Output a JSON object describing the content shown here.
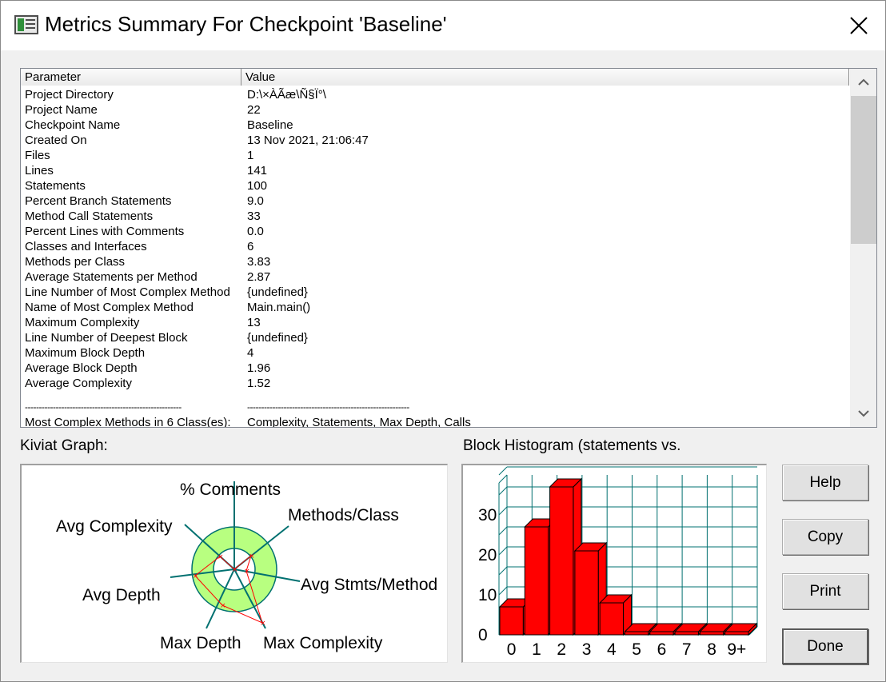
{
  "window": {
    "title": "Metrics Summary For Checkpoint 'Baseline'"
  },
  "table": {
    "columns": [
      "Parameter",
      "Value"
    ],
    "rows": [
      [
        "Project Directory",
        "D:\\×ÀÃæ\\Ñ§Ï°\\"
      ],
      [
        "Project Name",
        "22"
      ],
      [
        "Checkpoint Name",
        "Baseline"
      ],
      [
        "Created On",
        "13 Nov 2021, 21:06:47"
      ],
      [
        "Files",
        "1"
      ],
      [
        "Lines",
        "141"
      ],
      [
        "Statements",
        "100"
      ],
      [
        "Percent Branch Statements",
        "9.0"
      ],
      [
        "Method Call Statements",
        "33"
      ],
      [
        "Percent Lines with Comments",
        "0.0"
      ],
      [
        "Classes and Interfaces",
        "6"
      ],
      [
        "Methods per Class",
        "3.83"
      ],
      [
        "Average Statements per Method",
        "2.87"
      ],
      [
        "Line Number of Most Complex Method",
        "{undefined}"
      ],
      [
        "Name of Most Complex Method",
        "Main.main()"
      ],
      [
        "Maximum Complexity",
        "13"
      ],
      [
        "Line Number of Deepest Block",
        "{undefined}"
      ],
      [
        "Maximum Block Depth",
        "4"
      ],
      [
        "Average Block Depth",
        "1.96"
      ],
      [
        "Average Complexity",
        "1.52"
      ]
    ],
    "separator_row": [
      "--------------------------------------------------------",
      "----------------------------------------------------------"
    ],
    "partial_row": [
      "Most Complex Methods in 6 Class(es):",
      "Complexity, Statements, Max Depth, Calls"
    ]
  },
  "kiviat": {
    "label": "Kiviat Graph:",
    "axes": [
      "% Comments",
      "Methods/Class",
      "Avg Stmts/Method",
      "Max Complexity",
      "Max Depth",
      "Avg Depth",
      "Avg Complexity"
    ],
    "band_color": "#b8ff80",
    "plot_color": "#ff0000"
  },
  "histogram": {
    "label": "Block Histogram (statements vs.",
    "bar_color": "#ff0000",
    "grid_color": "#007070"
  },
  "chart_data": {
    "type": "bar",
    "categories": [
      "0",
      "1",
      "2",
      "3",
      "4",
      "5",
      "6",
      "7",
      "8",
      "9+"
    ],
    "values": [
      7,
      27,
      37,
      21,
      8,
      0,
      0,
      0,
      0,
      0
    ],
    "ylim": [
      0,
      40
    ],
    "yticks": [
      "0",
      "10",
      "20",
      "30"
    ]
  },
  "buttons": {
    "help": "Help",
    "copy": "Copy",
    "print": "Print",
    "done": "Done"
  }
}
